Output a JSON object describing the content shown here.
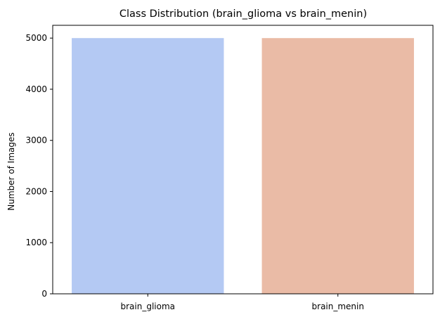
{
  "chart_data": {
    "type": "bar",
    "title": "Class Distribution (brain_glioma vs brain_menin)",
    "xlabel": "",
    "ylabel": "Number of Images",
    "categories": [
      "brain_glioma",
      "brain_menin"
    ],
    "values": [
      5000,
      5000
    ],
    "colors": [
      "#b4c9f3",
      "#eabba6"
    ],
    "ylim": [
      0,
      5250
    ],
    "yticks": [
      0,
      1000,
      2000,
      3000,
      4000,
      5000
    ],
    "grid": false,
    "legend": "none"
  }
}
